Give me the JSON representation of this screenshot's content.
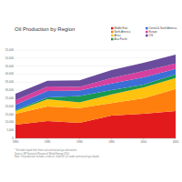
{
  "chart_data": {
    "type": "area",
    "title": "Oil Production by Region",
    "stacked": true,
    "grid": true,
    "legend": "top-right",
    "x": [
      1980,
      1985,
      1990,
      1995,
      2000,
      2005
    ],
    "xlim": [
      1980,
      2005
    ],
    "xticks": [
      1980,
      1985,
      1990,
      1995,
      2000,
      2005
    ],
    "ylim": [
      0,
      55000
    ],
    "yticks": [
      0,
      {
        "value": 5000,
        "label": "5,000"
      },
      {
        "value": 10000,
        "label": "10,000"
      },
      {
        "value": 15000,
        "label": "15,000"
      },
      {
        "value": 20000,
        "label": "20,000"
      },
      {
        "value": 25000,
        "label": "25,000"
      },
      {
        "value": 30000,
        "label": "30,000"
      },
      {
        "value": 35000,
        "label": "35,000"
      },
      {
        "value": 40000,
        "label": "40,000"
      },
      {
        "value": 45000,
        "label": "45,000"
      },
      {
        "value": 50000,
        "label": "50,000"
      },
      {
        "value": 55000,
        "label": "55,000"
      }
    ],
    "series": [
      {
        "name": "Middle East",
        "color": "#e31a1c",
        "values": [
          8500,
          10800,
          9700,
          14200,
          15300,
          17000
        ]
      },
      {
        "name": "North America",
        "color": "#ff7f0e",
        "values": [
          6800,
          9100,
          9100,
          7800,
          9700,
          13700
        ]
      },
      {
        "name": "Africa",
        "color": "#ffc20e",
        "values": [
          1700,
          4500,
          3600,
          5300,
          6800,
          6800
        ]
      },
      {
        "name": "Asia Pacific",
        "color": "#1a9850",
        "values": [
          600,
          1100,
          4000,
          2800,
          1700,
          2300
        ]
      },
      {
        "name": "Central & South America",
        "color": "#3b6fd6",
        "values": [
          3400,
          4000,
          3400,
          4000,
          4500,
          3400
        ]
      },
      {
        "name": "Europe",
        "color": "#d6409f",
        "values": [
          2800,
          2800,
          2300,
          3400,
          4000,
          3400
        ]
      },
      {
        "name": "CIS",
        "color": "#6a4c9c",
        "values": [
          4000,
          3500,
          4000,
          5000,
          5000,
          5500
        ]
      }
    ],
    "footnotes": [
      "* Excludes liquid fuels from coal and natural gas derivatives",
      "Source: BP Statistical Review of World Energy 2010",
      "Note: Oil production includes crude oil, shale oil, oil sands and natural gas liquids"
    ]
  }
}
